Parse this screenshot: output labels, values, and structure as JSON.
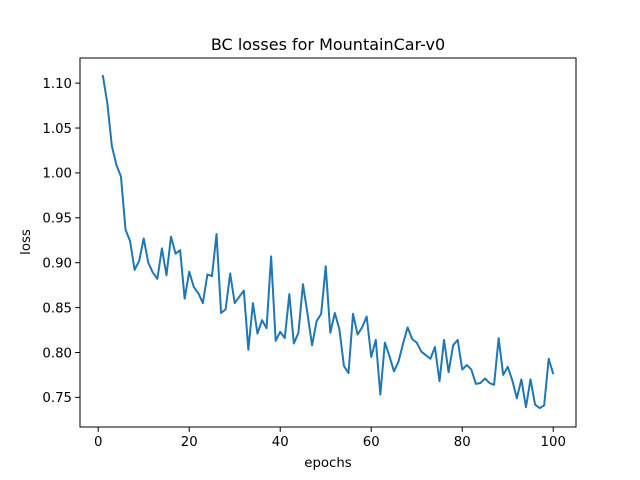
{
  "chart_data": {
    "type": "line",
    "title": "BC losses for MountainCar-v0",
    "xlabel": "epochs",
    "ylabel": "loss",
    "xlim": [
      -4,
      105
    ],
    "ylim": [
      0.717,
      1.128
    ],
    "grid": false,
    "xticks": [
      0,
      20,
      40,
      60,
      80,
      100
    ],
    "xtick_labels": [
      "0",
      "20",
      "40",
      "60",
      "80",
      "100"
    ],
    "yticks": [
      0.75,
      0.8,
      0.85,
      0.9,
      0.95,
      1.0,
      1.05,
      1.1
    ],
    "ytick_labels": [
      "0.75",
      "0.80",
      "0.85",
      "0.90",
      "0.95",
      "1.00",
      "1.05",
      "1.10"
    ],
    "series": [
      {
        "color": "#1f77b4",
        "x": [
          1,
          2,
          3,
          4,
          5,
          6,
          7,
          8,
          9,
          10,
          11,
          12,
          13,
          14,
          15,
          16,
          17,
          18,
          19,
          20,
          21,
          22,
          23,
          24,
          25,
          26,
          27,
          28,
          29,
          30,
          31,
          32,
          33,
          34,
          35,
          36,
          37,
          38,
          39,
          40,
          41,
          42,
          43,
          44,
          45,
          46,
          47,
          48,
          49,
          50,
          51,
          52,
          53,
          54,
          55,
          56,
          57,
          58,
          59,
          60,
          61,
          62,
          63,
          64,
          65,
          66,
          67,
          68,
          69,
          70,
          71,
          72,
          73,
          74,
          75,
          76,
          77,
          78,
          79,
          80,
          81,
          82,
          83,
          84,
          85,
          86,
          87,
          88,
          89,
          90,
          91,
          92,
          93,
          94,
          95,
          96,
          97,
          98,
          99,
          100
        ],
        "values": [
          1.109,
          1.078,
          1.03,
          1.009,
          0.996,
          0.937,
          0.924,
          0.892,
          0.902,
          0.927,
          0.9,
          0.889,
          0.882,
          0.916,
          0.886,
          0.929,
          0.91,
          0.914,
          0.86,
          0.89,
          0.873,
          0.866,
          0.855,
          0.887,
          0.885,
          0.932,
          0.844,
          0.848,
          0.888,
          0.855,
          0.862,
          0.869,
          0.803,
          0.855,
          0.821,
          0.836,
          0.827,
          0.907,
          0.813,
          0.823,
          0.816,
          0.865,
          0.81,
          0.822,
          0.876,
          0.843,
          0.808,
          0.835,
          0.843,
          0.896,
          0.822,
          0.844,
          0.826,
          0.785,
          0.777,
          0.843,
          0.82,
          0.828,
          0.84,
          0.795,
          0.814,
          0.753,
          0.811,
          0.796,
          0.779,
          0.79,
          0.81,
          0.828,
          0.815,
          0.811,
          0.801,
          0.797,
          0.793,
          0.806,
          0.768,
          0.814,
          0.778,
          0.808,
          0.814,
          0.781,
          0.786,
          0.781,
          0.765,
          0.766,
          0.771,
          0.766,
          0.764,
          0.816,
          0.775,
          0.784,
          0.769,
          0.749,
          0.77,
          0.739,
          0.77,
          0.742,
          0.738,
          0.741,
          0.793,
          0.776
        ]
      }
    ]
  }
}
